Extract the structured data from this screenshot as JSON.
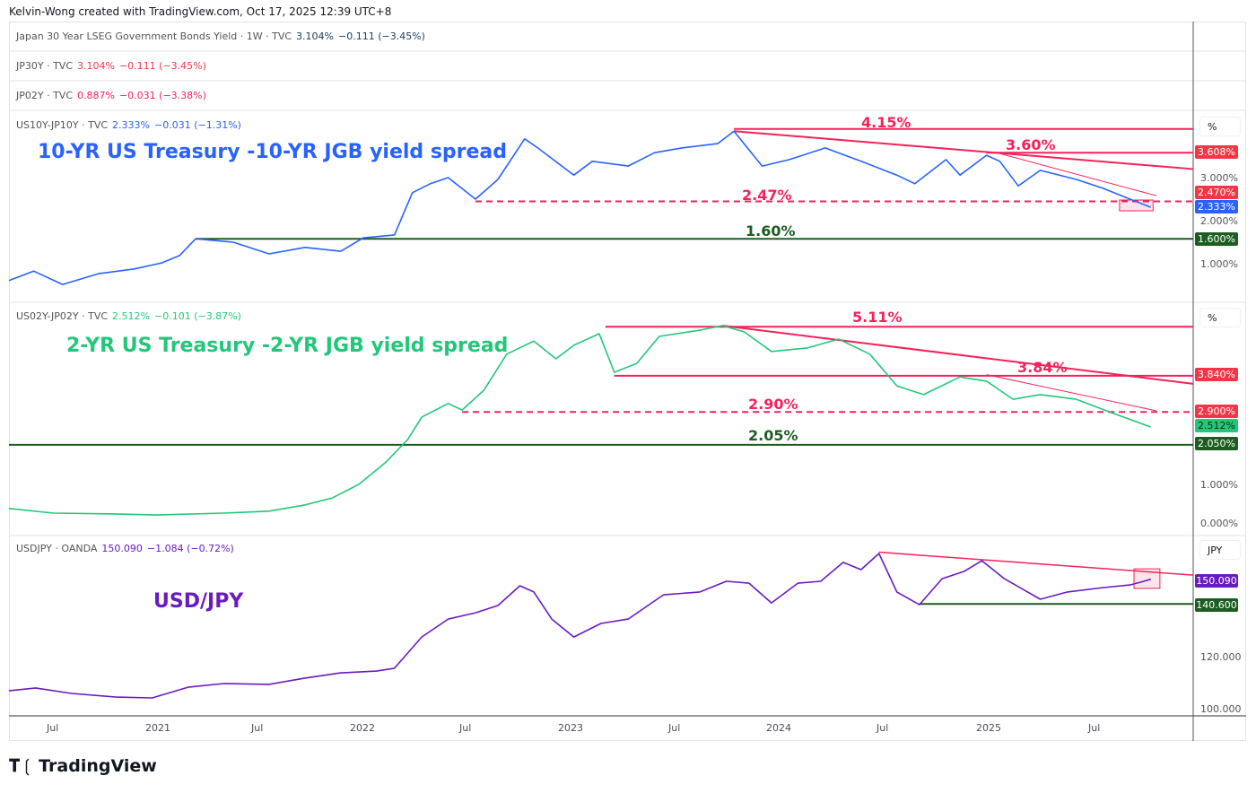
{
  "credit": "Kelvin-Wong created with TradingView.com, Oct 17, 2025 12:39 UTC+8",
  "legend_rows": [
    {
      "symbol": "Japan 30 Year LSEG Government Bonds Yield · 1W · TVC",
      "last": "3.104%",
      "change": "−0.111 (−3.45%)",
      "color": "#1e3a5f"
    },
    {
      "symbol": "JP30Y · TVC",
      "last": "3.104%",
      "change": "−0.111 (−3.45%)",
      "color": "#f23645"
    },
    {
      "symbol": "JP02Y · TVC",
      "last": "0.887%",
      "change": "−0.031 (−3.38%)",
      "color": "#f7215a"
    }
  ],
  "panes": [
    {
      "legend": {
        "symbol": "US10Y-JP10Y · TVC",
        "last": "2.333%",
        "change": "−0.031 (−1.31%)"
      },
      "title": "10-YR US Treasury -10-YR JGB yield spread",
      "unit": "%",
      "color": "#2962ff"
    },
    {
      "legend": {
        "symbol": "US02Y-JP02Y · TVC",
        "last": "2.512%",
        "change": "−0.101 (−3.87%)"
      },
      "title": "2-YR US Treasury -2-YR JGB yield spread",
      "unit": "%",
      "color": "#22c77a"
    },
    {
      "legend": {
        "symbol": "USDJPY · OANDA",
        "last": "150.090",
        "change": "−1.084 (−0.72%)"
      },
      "title": "USD/JPY",
      "unit": "JPY",
      "color": "#6a1bc0"
    }
  ],
  "annotations": {
    "p1": [
      "4.15%",
      "3.60%",
      "2.47%",
      "1.60%"
    ],
    "p2": [
      "5.11%",
      "3.84%",
      "2.90%",
      "2.05%"
    ]
  },
  "axis": {
    "p1": [
      "3.000%",
      "2.000%",
      "1.000%"
    ],
    "p1_tags": [
      "3.608%",
      "2.470%",
      "2.333%",
      "1.600%"
    ],
    "p2": [
      "1.000%",
      "0.000%"
    ],
    "p2_tags": [
      "3.840%",
      "2.900%",
      "2.512%",
      "2.050%"
    ],
    "p3": [
      "120.000",
      "100.000"
    ],
    "p3_tags": [
      "150.090",
      "140.600"
    ]
  },
  "time_labels": [
    "Jul",
    "2021",
    "Jul",
    "2022",
    "Jul",
    "2023",
    "Jul",
    "2024",
    "Jul",
    "2025",
    "Jul"
  ],
  "brand": "TradingView",
  "colors": {
    "red": "#f7215a",
    "dark_green": "#1b5e20",
    "blue": "#2962ff",
    "green": "#22c77a",
    "purple": "#6a1bc0"
  },
  "chart_data": [
    {
      "type": "line",
      "name": "US10Y-JP10Y",
      "unit": "%",
      "x": [
        "2020-04-15",
        "2020-05-28",
        "2020-07-18",
        "2020-09-20",
        "2020-11-22",
        "2021-01-09",
        "2021-02-10",
        "2021-03-08",
        "2021-05-13",
        "2021-07-15",
        "2021-09-17",
        "2021-11-19",
        "2021-12-28",
        "2022-02-22",
        "2022-03-23",
        "2022-04-24",
        "2022-05-25",
        "2022-07-12",
        "2022-08-21",
        "2022-10-07",
        "2022-10-30",
        "2023-01-02",
        "2023-02-04",
        "2023-04-06",
        "2023-05-22",
        "2023-07-09",
        "2023-09-11",
        "2023-10-09",
        "2023-11-28",
        "2024-01-15",
        "2024-03-17",
        "2024-05-19",
        "2024-07-21",
        "2024-08-22",
        "2024-10-16",
        "2024-11-10",
        "2024-12-26",
        "2025-01-19",
        "2025-02-21",
        "2025-03-29",
        "2025-06-01",
        "2025-07-18",
        "2025-09-04",
        "2025-10-10"
      ],
      "y": [
        0.63,
        0.85,
        0.54,
        0.79,
        0.9,
        1.04,
        1.21,
        1.6,
        1.52,
        1.25,
        1.4,
        1.31,
        1.62,
        1.69,
        2.67,
        2.88,
        3.02,
        2.52,
        2.98,
        3.92,
        3.71,
        3.08,
        3.4,
        3.29,
        3.6,
        3.71,
        3.81,
        4.1,
        3.29,
        3.44,
        3.71,
        3.4,
        3.08,
        2.88,
        3.44,
        3.08,
        3.54,
        3.4,
        2.83,
        3.19,
        2.98,
        2.77,
        2.52,
        2.333
      ],
      "levels": [
        4.15,
        3.6,
        2.47,
        1.6
      ],
      "ylim": [
        0.5,
        4.5
      ]
    },
    {
      "type": "line",
      "name": "US02Y-JP02Y",
      "unit": "%",
      "x": [
        "2020-04-15",
        "2020-07-02",
        "2020-10-06",
        "2021-01-01",
        "2021-04-27",
        "2021-07-15",
        "2021-09-17",
        "2021-11-04",
        "2021-12-20",
        "2022-02-07",
        "2022-03-15",
        "2022-04-09",
        "2022-05-25",
        "2022-06-19",
        "2022-07-27",
        "2022-09-06",
        "2022-10-23",
        "2022-12-01",
        "2023-01-02",
        "2023-02-16",
        "2023-03-12",
        "2023-04-21",
        "2023-05-30",
        "2023-08-10",
        "2023-09-19",
        "2023-10-27",
        "2023-12-14",
        "2024-02-16",
        "2024-04-10",
        "2024-06-04",
        "2024-07-21",
        "2024-09-07",
        "2024-11-10",
        "2024-12-26",
        "2025-02-12",
        "2025-03-29",
        "2025-06-01",
        "2025-08-03",
        "2025-10-10"
      ],
      "y": [
        0.4,
        0.28,
        0.26,
        0.23,
        0.28,
        0.33,
        0.49,
        0.67,
        1.02,
        1.6,
        2.19,
        2.77,
        3.12,
        2.95,
        3.47,
        4.4,
        4.74,
        4.28,
        4.63,
        4.93,
        3.93,
        4.16,
        4.86,
        5.02,
        5.14,
        4.98,
        4.47,
        4.56,
        4.79,
        4.4,
        3.58,
        3.35,
        3.81,
        3.7,
        3.23,
        3.35,
        3.23,
        2.88,
        2.512
      ],
      "levels": [
        5.11,
        3.84,
        2.9,
        2.05
      ],
      "ylim": [
        0,
        5.5
      ]
    },
    {
      "type": "line",
      "name": "USDJPY",
      "unit": "JPY",
      "x": [
        "2020-04-15",
        "2020-06-01",
        "2020-08-03",
        "2020-10-21",
        "2020-12-23",
        "2021-02-25",
        "2021-04-27",
        "2021-07-15",
        "2021-09-17",
        "2021-11-19",
        "2022-01-21",
        "2022-02-22",
        "2022-04-09",
        "2022-05-25",
        "2022-07-12",
        "2022-08-21",
        "2022-09-29",
        "2022-10-23",
        "2022-11-24",
        "2023-01-02",
        "2023-02-19",
        "2023-04-06",
        "2023-06-07",
        "2023-08-10",
        "2023-09-26",
        "2023-11-05",
        "2023-12-14",
        "2024-01-30",
        "2024-03-09",
        "2024-04-18",
        "2024-05-19",
        "2024-06-20",
        "2024-07-21",
        "2024-08-30",
        "2024-10-09",
        "2024-11-17",
        "2024-12-18",
        "2025-01-27",
        "2025-03-29",
        "2025-05-16",
        "2025-07-18",
        "2025-09-04",
        "2025-09-28",
        "2025-10-10"
      ],
      "y": [
        107.2,
        108.3,
        106.2,
        104.8,
        104.5,
        108.6,
        110,
        109.7,
        112.1,
        114.1,
        114.8,
        115.9,
        127.9,
        134.8,
        137.2,
        140,
        147.6,
        145.2,
        134.8,
        127.9,
        133.1,
        134.8,
        144.1,
        145.2,
        149.3,
        148.6,
        141,
        148.6,
        149.3,
        156.6,
        153.8,
        160,
        145.2,
        140.3,
        150.3,
        153.1,
        157.2,
        150.3,
        142.4,
        145.2,
        146.9,
        147.9,
        149.3,
        150.09
      ],
      "levels": [
        140.6
      ],
      "ylim": [
        95,
        165
      ]
    }
  ]
}
